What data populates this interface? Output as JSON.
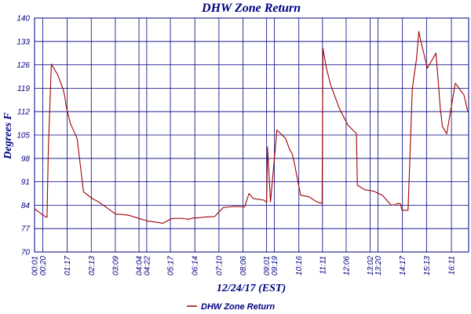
{
  "chart_data": {
    "type": "line",
    "title": "DHW Zone Return",
    "xlabel": "12/24/17 (EST)",
    "ylabel": "Degrees F",
    "ylim": [
      70,
      140
    ],
    "yticks": [
      70,
      77,
      84,
      91,
      98,
      105,
      112,
      119,
      126,
      133,
      140
    ],
    "xlim": [
      1,
      1011
    ],
    "xticks": [
      {
        "label": "00:01",
        "t": 1
      },
      {
        "label": "00:20",
        "t": 20
      },
      {
        "label": "01:17",
        "t": 77
      },
      {
        "label": "02:13",
        "t": 133
      },
      {
        "label": "03:09",
        "t": 189
      },
      {
        "label": "04:04",
        "t": 244
      },
      {
        "label": "04:22",
        "t": 262
      },
      {
        "label": "05:17",
        "t": 317
      },
      {
        "label": "06:14",
        "t": 374
      },
      {
        "label": "07:10",
        "t": 430
      },
      {
        "label": "08:06",
        "t": 486
      },
      {
        "label": "09:01",
        "t": 541
      },
      {
        "label": "09:19",
        "t": 559
      },
      {
        "label": "10:16",
        "t": 616
      },
      {
        "label": "11:11",
        "t": 671
      },
      {
        "label": "12:06",
        "t": 726
      },
      {
        "label": "13:02",
        "t": 782
      },
      {
        "label": "13:20",
        "t": 800
      },
      {
        "label": "14:17",
        "t": 857
      },
      {
        "label": "15:13",
        "t": 913
      },
      {
        "label": "16:11",
        "t": 971
      }
    ],
    "grid": true,
    "legend": "bottom",
    "series": [
      {
        "name": "DHW Zone Return",
        "color": "#a00000",
        "x": [
          1,
          10,
          18,
          28,
          30,
          33,
          40,
          55,
          68,
          72,
          74,
          84,
          100,
          115,
          120,
          135,
          150,
          190,
          200,
          220,
          250,
          260,
          262,
          280,
          300,
          320,
          340,
          360,
          370,
          374,
          380,
          400,
          420,
          440,
          455,
          460,
          462,
          470,
          490,
          500,
          510,
          535,
          539,
          541,
          543,
          550,
          565,
          585,
          595,
          600,
          605,
          620,
          640,
          655,
          665,
          670,
          672,
          680,
          690,
          710,
          730,
          750,
          752,
          770,
          790,
          810,
          830,
          840,
          845,
          852,
          856,
          860,
          870,
          880,
          890,
          895,
          900,
          915,
          935,
          945,
          950,
          960,
          980,
          1000,
          1009
        ],
        "values": [
          82.9,
          82.1,
          81.3,
          80.4,
          80.4,
          100,
          126.2,
          123,
          118.5,
          116,
          114,
          108.6,
          104,
          88,
          87.5,
          86,
          85,
          81.3,
          81.3,
          81,
          79.8,
          79.5,
          79.3,
          79,
          78.6,
          80,
          80.1,
          79.8,
          80.2,
          80.2,
          80.2,
          80.5,
          80.6,
          83.3,
          83.5,
          83.5,
          83.6,
          83.6,
          83.5,
          87.5,
          86,
          85.5,
          85,
          84.8,
          101.5,
          85,
          106.5,
          104,
          100.5,
          99.5,
          97,
          87,
          86.5,
          85.2,
          84.6,
          84.6,
          130.9,
          125,
          120,
          113,
          108,
          105.4,
          90,
          88.6,
          88.2,
          87,
          84.1,
          84.1,
          84.5,
          84.5,
          82.5,
          82.5,
          82.5,
          119,
          128,
          136,
          133,
          125,
          129.5,
          113,
          107.5,
          105.4,
          120.5,
          117,
          112
        ]
      }
    ]
  }
}
